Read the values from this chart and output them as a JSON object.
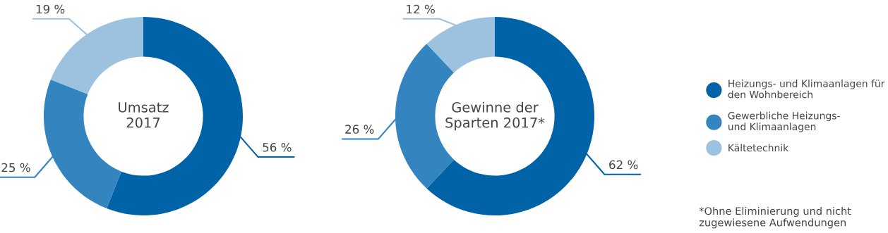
{
  "chart_data": [
    {
      "type": "donut",
      "title": "Umsatz\n2017",
      "categories": [
        "Heizungs- und Klimaanlagen für\nden Wohnbereich",
        "Gewerbliche Heizungs-\nund Klimaanlagen",
        "Kältetechnik"
      ],
      "values": [
        56,
        25,
        19
      ],
      "colors": [
        "#0063a8",
        "#3484bf",
        "#9cc2df"
      ],
      "value_labels": [
        "56 %",
        "25 %",
        "19 %"
      ],
      "legend": "right"
    },
    {
      "type": "donut",
      "title": "Gewinne der\nSparten 2017*",
      "categories": [
        null,
        null,
        null
      ],
      "values": [
        62,
        26,
        12
      ],
      "colors": [
        "#0063a8",
        "#3484bf",
        "#9cc2df"
      ],
      "value_labels": [
        "62 %",
        "26 %",
        "12 %"
      ],
      "annotations": [
        "*Ohne Eliminierung und nicht\nzugewiesene Aufwendungen"
      ]
    }
  ]
}
